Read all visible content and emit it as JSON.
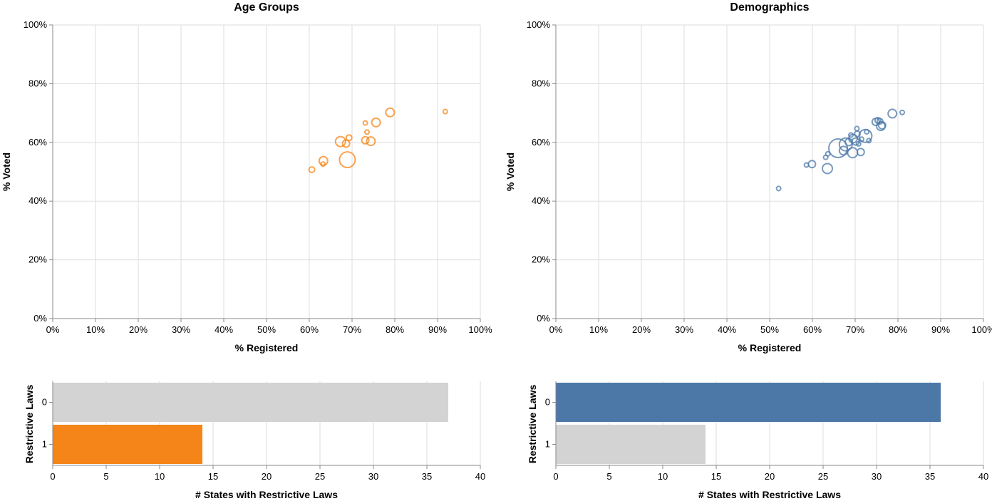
{
  "colors": {
    "age": "#f58518",
    "demo": "#4c78a8",
    "inactive": "#d3d3d3",
    "grid": "#dddddd",
    "axis": "#888888"
  },
  "chart_data": [
    {
      "id": "age-scatter",
      "type": "scatter",
      "title": "Age Groups",
      "xlabel": "% Registered",
      "ylabel": "% Voted",
      "xlim": [
        0,
        100
      ],
      "ylim": [
        0,
        100
      ],
      "xticks": [
        "0%",
        "10%",
        "20%",
        "30%",
        "40%",
        "50%",
        "60%",
        "70%",
        "80%",
        "90%",
        "100%"
      ],
      "yticks": [
        "0%",
        "20%",
        "40%",
        "60%",
        "80%",
        "100%"
      ],
      "grid": true,
      "color": "#f58518",
      "points": [
        {
          "x": 60.6,
          "y": 50.7,
          "size": 4
        },
        {
          "x": 63.3,
          "y": 53.7,
          "size": 6
        },
        {
          "x": 63.2,
          "y": 52.6,
          "size": 3
        },
        {
          "x": 67.3,
          "y": 60.3,
          "size": 7
        },
        {
          "x": 68.6,
          "y": 59.6,
          "size": 5
        },
        {
          "x": 68.9,
          "y": 54.1,
          "size": 11
        },
        {
          "x": 69.3,
          "y": 61.6,
          "size": 4
        },
        {
          "x": 73.1,
          "y": 66.6,
          "size": 3
        },
        {
          "x": 73.5,
          "y": 63.5,
          "size": 3
        },
        {
          "x": 73.1,
          "y": 60.7,
          "size": 5
        },
        {
          "x": 74.4,
          "y": 60.4,
          "size": 6
        },
        {
          "x": 75.6,
          "y": 66.8,
          "size": 6
        },
        {
          "x": 78.9,
          "y": 70.2,
          "size": 6
        },
        {
          "x": 91.8,
          "y": 70.5,
          "size": 3
        }
      ]
    },
    {
      "id": "demo-scatter",
      "type": "scatter",
      "title": "Demographics",
      "xlabel": "% Registered",
      "ylabel": "% Voted",
      "xlim": [
        0,
        100
      ],
      "ylim": [
        0,
        100
      ],
      "xticks": [
        "0%",
        "10%",
        "20%",
        "30%",
        "40%",
        "50%",
        "60%",
        "70%",
        "80%",
        "90%",
        "100%"
      ],
      "yticks": [
        "0%",
        "20%",
        "40%",
        "60%",
        "80%",
        "100%"
      ],
      "grid": true,
      "color": "#4c78a8",
      "points": [
        {
          "x": 52.1,
          "y": 44.3,
          "size": 3
        },
        {
          "x": 58.6,
          "y": 52.3,
          "size": 3
        },
        {
          "x": 59.9,
          "y": 52.6,
          "size": 5
        },
        {
          "x": 63.1,
          "y": 54.9,
          "size": 3
        },
        {
          "x": 63.6,
          "y": 56.1,
          "size": 3
        },
        {
          "x": 63.5,
          "y": 51.1,
          "size": 7
        },
        {
          "x": 66.0,
          "y": 58.0,
          "size": 13
        },
        {
          "x": 67.3,
          "y": 57.2,
          "size": 6
        },
        {
          "x": 67.8,
          "y": 59.3,
          "size": 9
        },
        {
          "x": 68.5,
          "y": 60.1,
          "size": 5
        },
        {
          "x": 69.0,
          "y": 62.5,
          "size": 3
        },
        {
          "x": 69.4,
          "y": 56.5,
          "size": 7
        },
        {
          "x": 69.5,
          "y": 61.3,
          "size": 6
        },
        {
          "x": 70.1,
          "y": 60.3,
          "size": 5
        },
        {
          "x": 70.5,
          "y": 62.9,
          "size": 4
        },
        {
          "x": 70.4,
          "y": 64.7,
          "size": 3
        },
        {
          "x": 70.8,
          "y": 59.5,
          "size": 3
        },
        {
          "x": 71.3,
          "y": 56.7,
          "size": 5
        },
        {
          "x": 71.5,
          "y": 61.1,
          "size": 3
        },
        {
          "x": 72.4,
          "y": 62.2,
          "size": 9
        },
        {
          "x": 72.7,
          "y": 63.6,
          "size": 3
        },
        {
          "x": 73.2,
          "y": 60.6,
          "size": 3
        },
        {
          "x": 74.8,
          "y": 67.0,
          "size": 5
        },
        {
          "x": 75.3,
          "y": 67.5,
          "size": 4
        },
        {
          "x": 75.8,
          "y": 67.2,
          "size": 4
        },
        {
          "x": 76.0,
          "y": 65.5,
          "size": 6
        },
        {
          "x": 76.3,
          "y": 65.8,
          "size": 5
        },
        {
          "x": 78.7,
          "y": 69.8,
          "size": 6
        },
        {
          "x": 81.0,
          "y": 70.2,
          "size": 3
        }
      ]
    },
    {
      "id": "age-bars",
      "type": "bar",
      "orientation": "horizontal",
      "xlabel": "# States with Restrictive Laws",
      "ylabel": "Restrictive Laws",
      "categories": [
        "0",
        "1"
      ],
      "values": [
        37,
        14
      ],
      "highlight": [
        false,
        true
      ],
      "xlim": [
        0,
        40
      ],
      "xticks": [
        "0",
        "5",
        "10",
        "15",
        "20",
        "25",
        "30",
        "35",
        "40"
      ],
      "grid": true
    },
    {
      "id": "demo-bars",
      "type": "bar",
      "orientation": "horizontal",
      "xlabel": "# States with Restrictive Laws",
      "ylabel": "Restrictive Laws",
      "categories": [
        "0",
        "1"
      ],
      "values": [
        36,
        14
      ],
      "highlight": [
        true,
        false
      ],
      "xlim": [
        0,
        40
      ],
      "xticks": [
        "0",
        "5",
        "10",
        "15",
        "20",
        "25",
        "30",
        "35",
        "40"
      ],
      "grid": true
    }
  ]
}
